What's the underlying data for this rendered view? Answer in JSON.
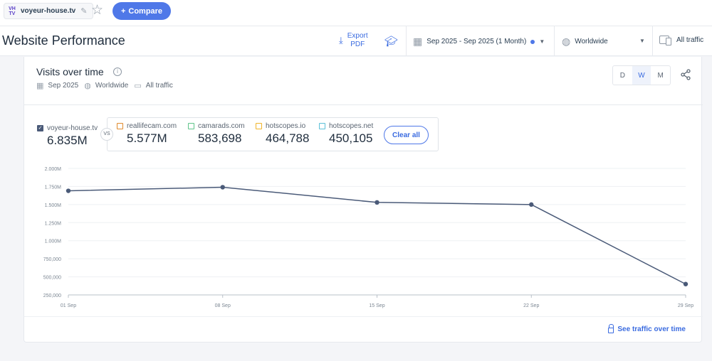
{
  "topbar": {
    "site_name": "voyeur-house.tv",
    "favicon_text": [
      "VH",
      "TV"
    ],
    "compare_label": "Compare",
    "compare_plus": "+"
  },
  "header": {
    "page_title": "Website Performance",
    "export_line1": "Export",
    "export_line2": "PDF",
    "date_range": "Sep 2025 - Sep 2025 (1 Month)",
    "country": "Worldwide",
    "traffic": "All traffic"
  },
  "card": {
    "title": "Visits over time",
    "meta_date": "Sep 2025",
    "meta_country": "Worldwide",
    "meta_traffic": "All traffic",
    "granularity": [
      "D",
      "W",
      "M"
    ],
    "granularity_selected": "W",
    "vs_label": "VS",
    "clear_all": "Clear all",
    "see_traffic": "See traffic over time"
  },
  "legend": {
    "main": {
      "site": "voyeur-house.tv",
      "value": "6.835M",
      "color": "#4a5a78",
      "checked": true
    },
    "competitors": [
      {
        "site": "reallifecam.com",
        "value": "5.577M",
        "color": "#e08a2c"
      },
      {
        "site": "camarads.com",
        "value": "583,698",
        "color": "#5fc48a"
      },
      {
        "site": "hotscopes.io",
        "value": "464,788",
        "color": "#f0b429"
      },
      {
        "site": "hotscopes.net",
        "value": "450,105",
        "color": "#5bc0d8"
      }
    ]
  },
  "chart_data": {
    "type": "line",
    "x": [
      "01 Sep",
      "08 Sep",
      "15 Sep",
      "22 Sep",
      "29 Sep"
    ],
    "series": [
      {
        "name": "voyeur-house.tv",
        "values": [
          1690000,
          1740000,
          1530000,
          1500000,
          400000
        ],
        "color": "#4a5a78"
      }
    ],
    "yticks": [
      "2.000M",
      "1.750M",
      "1.500M",
      "1.250M",
      "1.000M",
      "750,000",
      "500,000",
      "250,000"
    ],
    "ylim": [
      250000,
      2000000
    ],
    "grid": true
  }
}
